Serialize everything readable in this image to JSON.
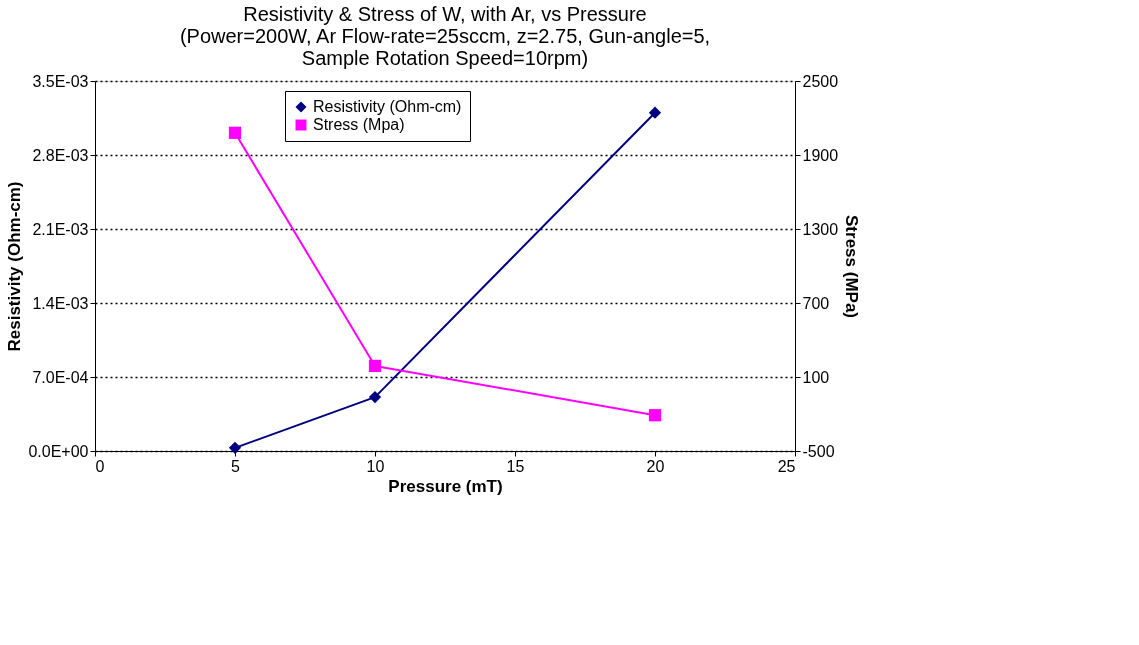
{
  "chart_data": {
    "type": "line",
    "title": "Resistivity & Stress of W, with Ar, vs Pressure\n(Power=200W, Ar Flow-rate=25sccm, z=2.75, Gun-angle=5,\nSample Rotation Speed=10rpm)",
    "xlabel": "Pressure (mT)",
    "ylabel": "Resistivity (Ohm-cm)",
    "y2label": "Stress (MPa)",
    "x": [
      5,
      10,
      20
    ],
    "series": [
      {
        "name": "Resistivity (Ohm-cm)",
        "color": "#000080",
        "marker": "diamond",
        "values": [
          3e-05,
          0.00051,
          0.0032
        ]
      },
      {
        "name": "Stress (Mpa)",
        "color": "#ff00ff",
        "marker": "square",
        "axis": "y2",
        "values": [
          2080,
          190,
          -210
        ]
      }
    ],
    "xlim": [
      0,
      25
    ],
    "xticks": [
      0,
      5,
      10,
      15,
      20,
      25
    ],
    "ylim": [
      0,
      0.0035
    ],
    "yticks": [
      {
        "value": 0,
        "label": "0.0E+00"
      },
      {
        "value": 0.0007,
        "label": "7.0E-04"
      },
      {
        "value": 0.0014,
        "label": "1.4E-03"
      },
      {
        "value": 0.0021,
        "label": "2.1E-03"
      },
      {
        "value": 0.0028,
        "label": "2.8E-03"
      },
      {
        "value": 0.0035,
        "label": "3.5E-03"
      }
    ],
    "y2lim": [
      -500,
      2500
    ],
    "y2ticks": [
      -500,
      100,
      700,
      1300,
      1900,
      2500
    ],
    "grid": "y",
    "legend": "top",
    "line_style": "solid"
  }
}
